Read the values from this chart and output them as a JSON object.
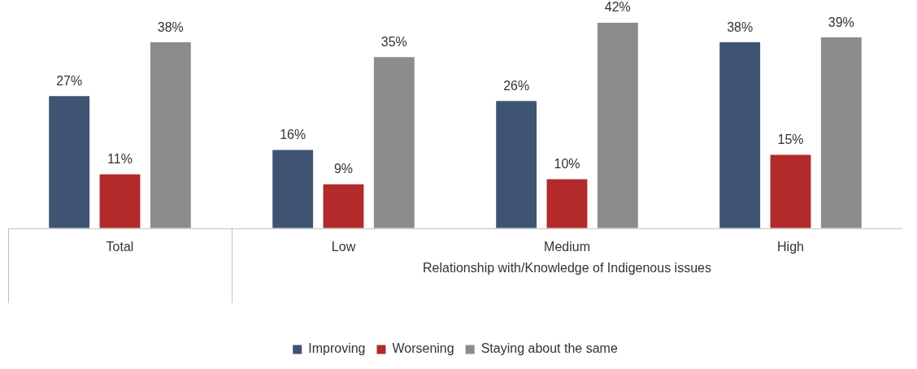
{
  "chart_data": {
    "type": "bar",
    "xlabel": "Relationship with/Knowledge of Indigenous issues",
    "categories": [
      "Total",
      "Low",
      "Medium",
      "High"
    ],
    "series": [
      {
        "name": "Improving",
        "color": "#3f5373",
        "values": [
          27,
          16,
          26,
          38
        ],
        "value_labels": [
          "27%",
          "16%",
          "26%",
          "38%"
        ]
      },
      {
        "name": "Worsening",
        "color": "#b22a2a",
        "values": [
          11,
          9,
          10,
          15
        ],
        "value_labels": [
          "11%",
          "9%",
          "10%",
          "15%"
        ]
      },
      {
        "name": "Staying about the same",
        "color": "#8c8c8c",
        "values": [
          38,
          35,
          42,
          39
        ],
        "value_labels": [
          "38%",
          "35%",
          "42%",
          "39%"
        ]
      }
    ],
    "legend": "bottom"
  }
}
